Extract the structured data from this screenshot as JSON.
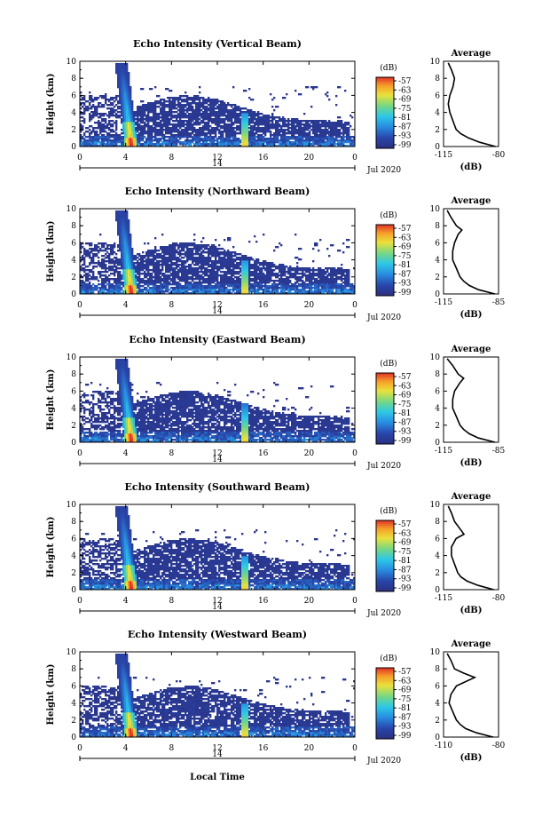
{
  "figure": {
    "bottom_label": "Local Time",
    "date_label": "Jul 2020",
    "day_label": "14",
    "colorbar_title": "(dB)",
    "colorbar_ticks": [
      "-57",
      "-63",
      "-69",
      "-75",
      "-81",
      "-87",
      "-93",
      "-99"
    ],
    "avg_title": "Average",
    "avg_xlabel": "(dB)",
    "colors": {
      "low": "#2b2f80",
      "mid": "#29b8e8",
      "high": "#f5c020",
      "peak": "#e83a2a",
      "white": "#ffffff"
    }
  },
  "chart_data": [
    {
      "type": "heatmap",
      "title": "Echo Intensity (Vertical Beam)",
      "xlabel": "Local Time",
      "ylabel": "Height (km)",
      "xticks": [
        "0",
        "4",
        "8",
        "12",
        "16",
        "20",
        "0"
      ],
      "yticks": [
        "0",
        "2",
        "4",
        "6",
        "8",
        "10"
      ],
      "xlim": [
        0,
        24
      ],
      "ylim": [
        0,
        10
      ],
      "colorbar_range_db": [
        -99,
        -57
      ],
      "avg_profile": {
        "xticks": [
          "-115",
          "-80"
        ],
        "xlim": [
          -115,
          -80
        ],
        "height_km": [
          0,
          0.5,
          1,
          1.5,
          2,
          2.5,
          3,
          3.5,
          4,
          5,
          6,
          7,
          8,
          9,
          9.8
        ],
        "db": [
          -82,
          -92,
          -99,
          -104,
          -107,
          -108,
          -109,
          -110,
          -111,
          -112,
          -111,
          -109,
          -108,
          -110,
          -112
        ]
      }
    },
    {
      "type": "heatmap",
      "title": "Echo Intensity (Northward Beam)",
      "xlabel": "Local Time",
      "ylabel": "Height (km)",
      "xticks": [
        "0",
        "4",
        "8",
        "12",
        "16",
        "20",
        "0"
      ],
      "yticks": [
        "0",
        "2",
        "4",
        "6",
        "8",
        "10"
      ],
      "xlim": [
        0,
        24
      ],
      "ylim": [
        0,
        10
      ],
      "colorbar_range_db": [
        -99,
        -57
      ],
      "avg_profile": {
        "xticks": [
          "-115",
          "-85"
        ],
        "xlim": [
          -115,
          -85
        ],
        "height_km": [
          0,
          0.5,
          1,
          1.5,
          2,
          2.5,
          3,
          3.5,
          4,
          5,
          6,
          7,
          7.5,
          8,
          9,
          9.8
        ],
        "db": [
          -87,
          -96,
          -101,
          -104,
          -106,
          -107,
          -108,
          -109,
          -110,
          -110,
          -109,
          -107,
          -105,
          -108,
          -111,
          -113
        ]
      }
    },
    {
      "type": "heatmap",
      "title": "Echo Intensity (Eastward Beam)",
      "xlabel": "Local Time",
      "ylabel": "Height (km)",
      "xticks": [
        "0",
        "4",
        "8",
        "12",
        "16",
        "20",
        "0"
      ],
      "yticks": [
        "0",
        "2",
        "4",
        "6",
        "8",
        "10"
      ],
      "xlim": [
        0,
        24
      ],
      "ylim": [
        0,
        10
      ],
      "colorbar_range_db": [
        -99,
        -57
      ],
      "avg_profile": {
        "xticks": [
          "-115",
          "-85"
        ],
        "xlim": [
          -115,
          -85
        ],
        "height_km": [
          0,
          0.5,
          1,
          1.5,
          2,
          2.5,
          3,
          3.5,
          4,
          5,
          6,
          7,
          7.5,
          8,
          9,
          9.8
        ],
        "db": [
          -87,
          -96,
          -101,
          -104,
          -106,
          -107,
          -108,
          -109,
          -110,
          -110,
          -109,
          -106,
          -104,
          -107,
          -110,
          -113
        ]
      }
    },
    {
      "type": "heatmap",
      "title": "Echo Intensity (Southward Beam)",
      "xlabel": "Local Time",
      "ylabel": "Height (km)",
      "xticks": [
        "0",
        "4",
        "8",
        "12",
        "16",
        "20",
        "0"
      ],
      "yticks": [
        "0",
        "2",
        "4",
        "6",
        "8",
        "10"
      ],
      "xlim": [
        0,
        24
      ],
      "ylim": [
        0,
        10
      ],
      "colorbar_range_db": [
        -99,
        -57
      ],
      "avg_profile": {
        "xticks": [
          "-115",
          "-80"
        ],
        "xlim": [
          -115,
          -80
        ],
        "height_km": [
          0,
          0.5,
          1,
          1.5,
          2,
          2.5,
          3,
          3.5,
          4,
          5,
          6,
          6.5,
          7,
          8,
          9,
          9.8
        ],
        "db": [
          -83,
          -93,
          -100,
          -104,
          -106,
          -107,
          -108,
          -109,
          -110,
          -110,
          -107,
          -102,
          -104,
          -108,
          -110,
          -112
        ]
      }
    },
    {
      "type": "heatmap",
      "title": "Echo Intensity (Westward Beam)",
      "xlabel": "Local Time",
      "ylabel": "Height (km)",
      "xticks": [
        "0",
        "4",
        "8",
        "12",
        "16",
        "20",
        "0"
      ],
      "yticks": [
        "0",
        "2",
        "4",
        "6",
        "8",
        "10"
      ],
      "xlim": [
        0,
        24
      ],
      "ylim": [
        0,
        10
      ],
      "colorbar_range_db": [
        -99,
        -57
      ],
      "avg_profile": {
        "xticks": [
          "-110",
          "-80"
        ],
        "xlim": [
          -110,
          -80
        ],
        "height_km": [
          0,
          0.5,
          1,
          1.5,
          2,
          2.5,
          3,
          3.5,
          4,
          5,
          6,
          7,
          7.5,
          8,
          9,
          9.8
        ],
        "db": [
          -83,
          -92,
          -98,
          -101,
          -103,
          -104,
          -105,
          -106,
          -107,
          -106,
          -103,
          -93,
          -99,
          -104,
          -106,
          -108
        ]
      }
    }
  ]
}
